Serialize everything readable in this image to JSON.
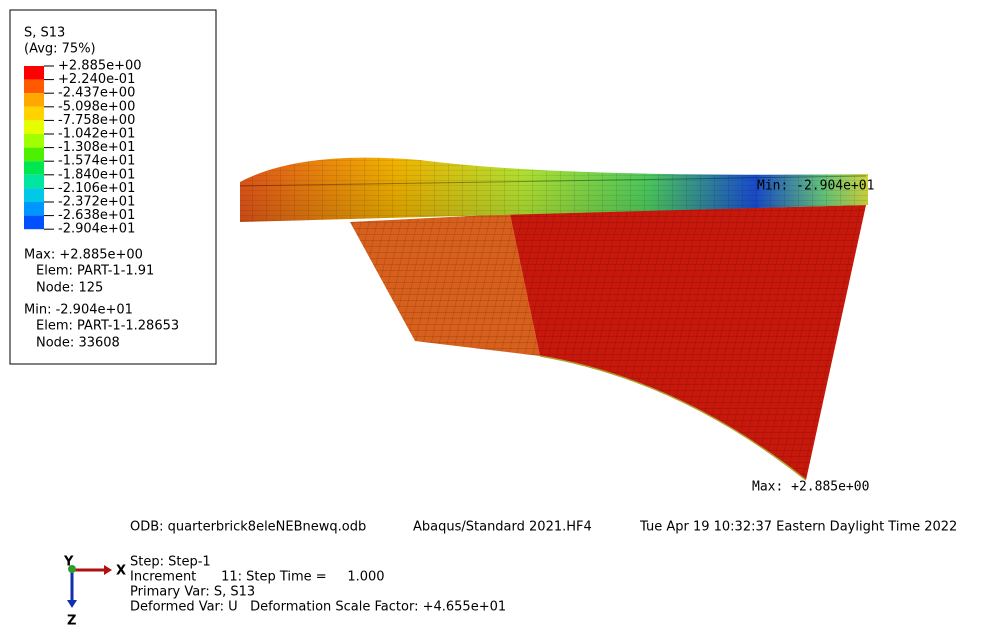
{
  "legend": {
    "title": "S, S13",
    "subtitle": "(Avg: 75%)",
    "labels": [
      "+2.885e+00",
      "+2.240e-01",
      "-2.437e+00",
      "-5.098e+00",
      "-7.758e+00",
      "-1.042e+01",
      "-1.308e+01",
      "-1.574e+01",
      "-1.840e+01",
      "-2.106e+01",
      "-2.372e+01",
      "-2.638e+01",
      "-2.904e+01"
    ],
    "max": {
      "label": "Max: +2.885e+00",
      "elem": "Elem: PART-1-1.91",
      "node": "Node: 125"
    },
    "min": {
      "label": "Min: -2.904e+01",
      "elem": "Elem: PART-1-1.28653",
      "node": "Node: 33608"
    }
  },
  "annotations": {
    "min": "Min: -2.904e+01",
    "max": "Max: +2.885e+00"
  },
  "footer": {
    "odb": "ODB: quarterbrick8eleNEBnewq.odb",
    "version": "Abaqus/Standard 2021.HF4",
    "date": "Tue Apr 19 10:32:37 Eastern Daylight Time 2022"
  },
  "status": {
    "step": "Step: Step-1",
    "increment": "Increment      11: Step Time =     1.000",
    "primary": "Primary Var: S, S13",
    "deformed": "Deformed Var: U   Deformation Scale Factor: +4.655e+01"
  },
  "triad": {
    "y": "Y",
    "x": "X",
    "z": "Z"
  }
}
